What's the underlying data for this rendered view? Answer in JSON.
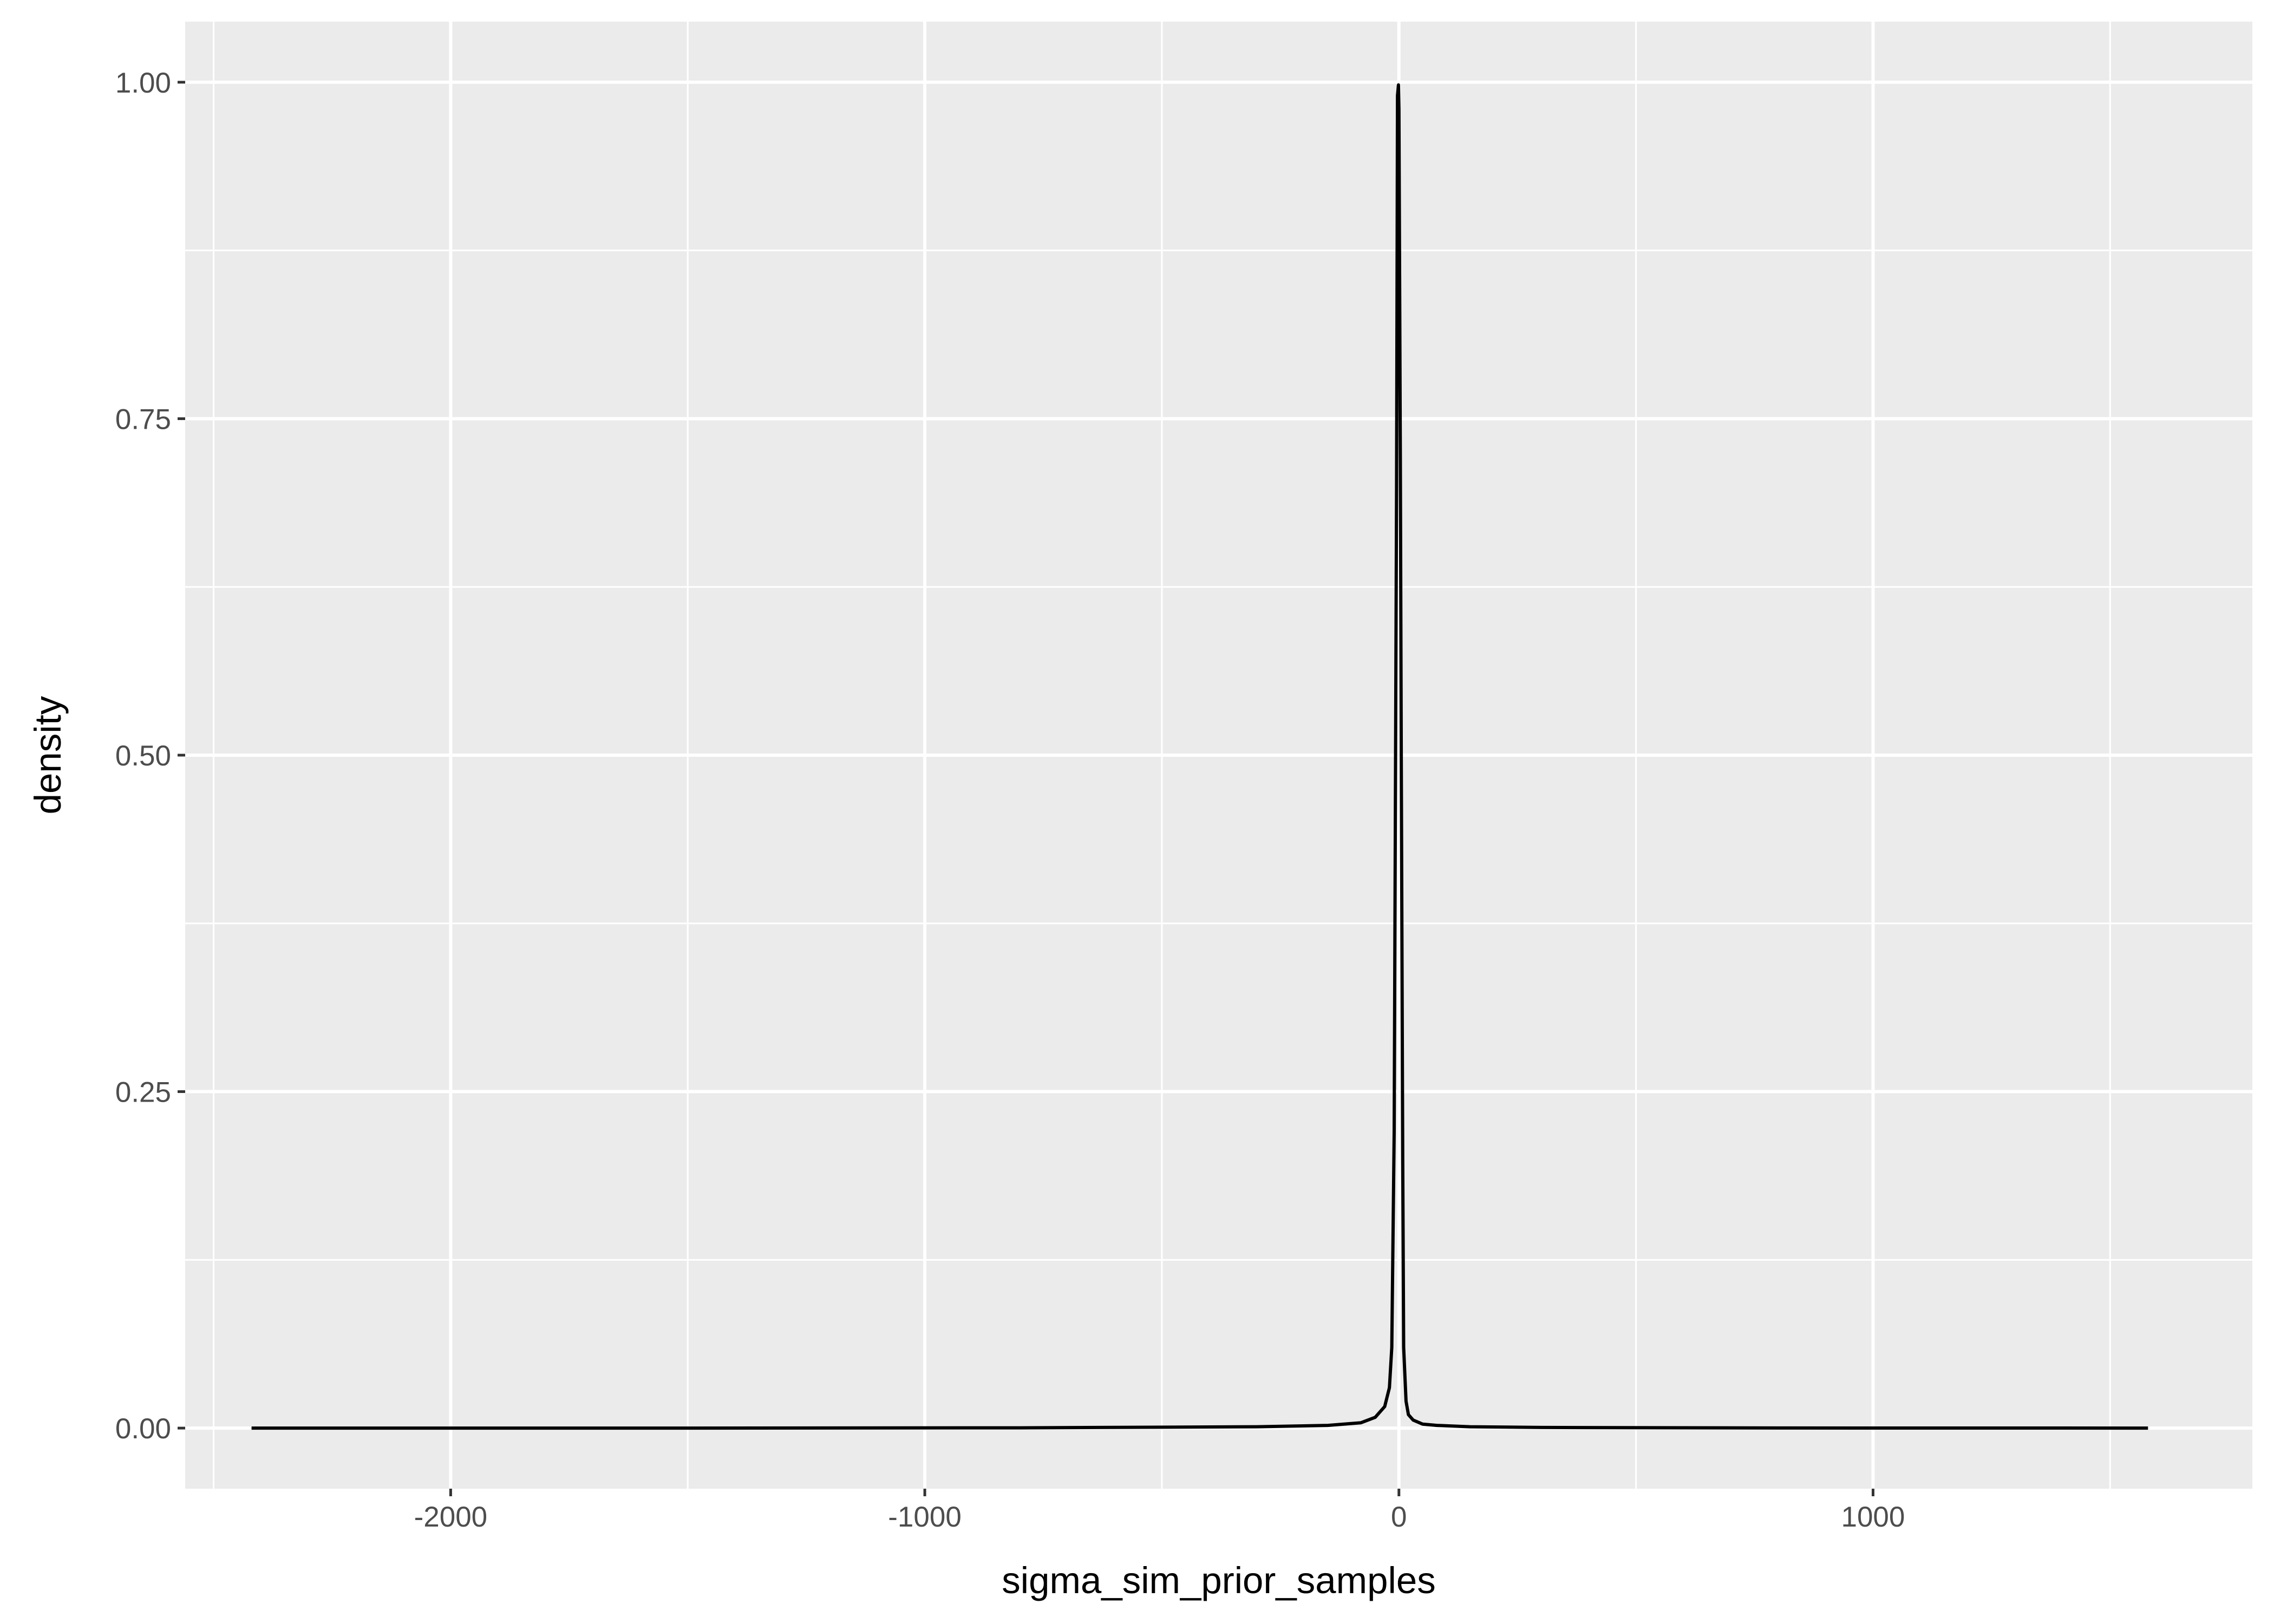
{
  "chart_data": {
    "type": "area",
    "title": "",
    "xlabel": "sigma_sim_prior_samples",
    "ylabel": "density",
    "xlim": [
      -2560,
      1800
    ],
    "ylim": [
      -0.045,
      1.045
    ],
    "x_ticks": [
      -2000,
      -1000,
      0,
      1000
    ],
    "x_tick_labels": [
      "-2000",
      "-1000",
      "0",
      "1000"
    ],
    "y_ticks": [
      0,
      0.25,
      0.5,
      0.75,
      1.0
    ],
    "y_tick_labels": [
      "0.00",
      "0.25",
      "0.50",
      "0.75",
      "1.00"
    ],
    "x_minor_ticks": [
      -2500,
      -1500,
      -500,
      500,
      1500
    ],
    "y_minor_ticks": [
      0.125,
      0.375,
      0.625,
      0.875
    ],
    "grid": true,
    "legend": "none",
    "series": [
      {
        "x": [
          -2420,
          -1500,
          -800,
          -300,
          -150,
          -80,
          -50,
          -30,
          -20,
          -15,
          -10,
          -5,
          -3,
          -1,
          0,
          1,
          3,
          5,
          8,
          10,
          15,
          20,
          30,
          50,
          80,
          150,
          300,
          800,
          1580
        ],
        "y": [
          0,
          0,
          0.0002,
          0.001,
          0.002,
          0.004,
          0.008,
          0.016,
          0.03,
          0.06,
          0.22,
          0.7,
          0.99,
          0.998,
          0.98,
          0.9,
          0.72,
          0.5,
          0.2,
          0.06,
          0.02,
          0.01,
          0.006,
          0.003,
          0.002,
          0.001,
          0.0005,
          0.0001,
          0
        ]
      }
    ],
    "colors": {
      "panel_background": "#ebebeb",
      "grid": "#ffffff",
      "line": "#000000",
      "tick_text": "#4d4d4d",
      "tick_mark": "#333333"
    }
  }
}
